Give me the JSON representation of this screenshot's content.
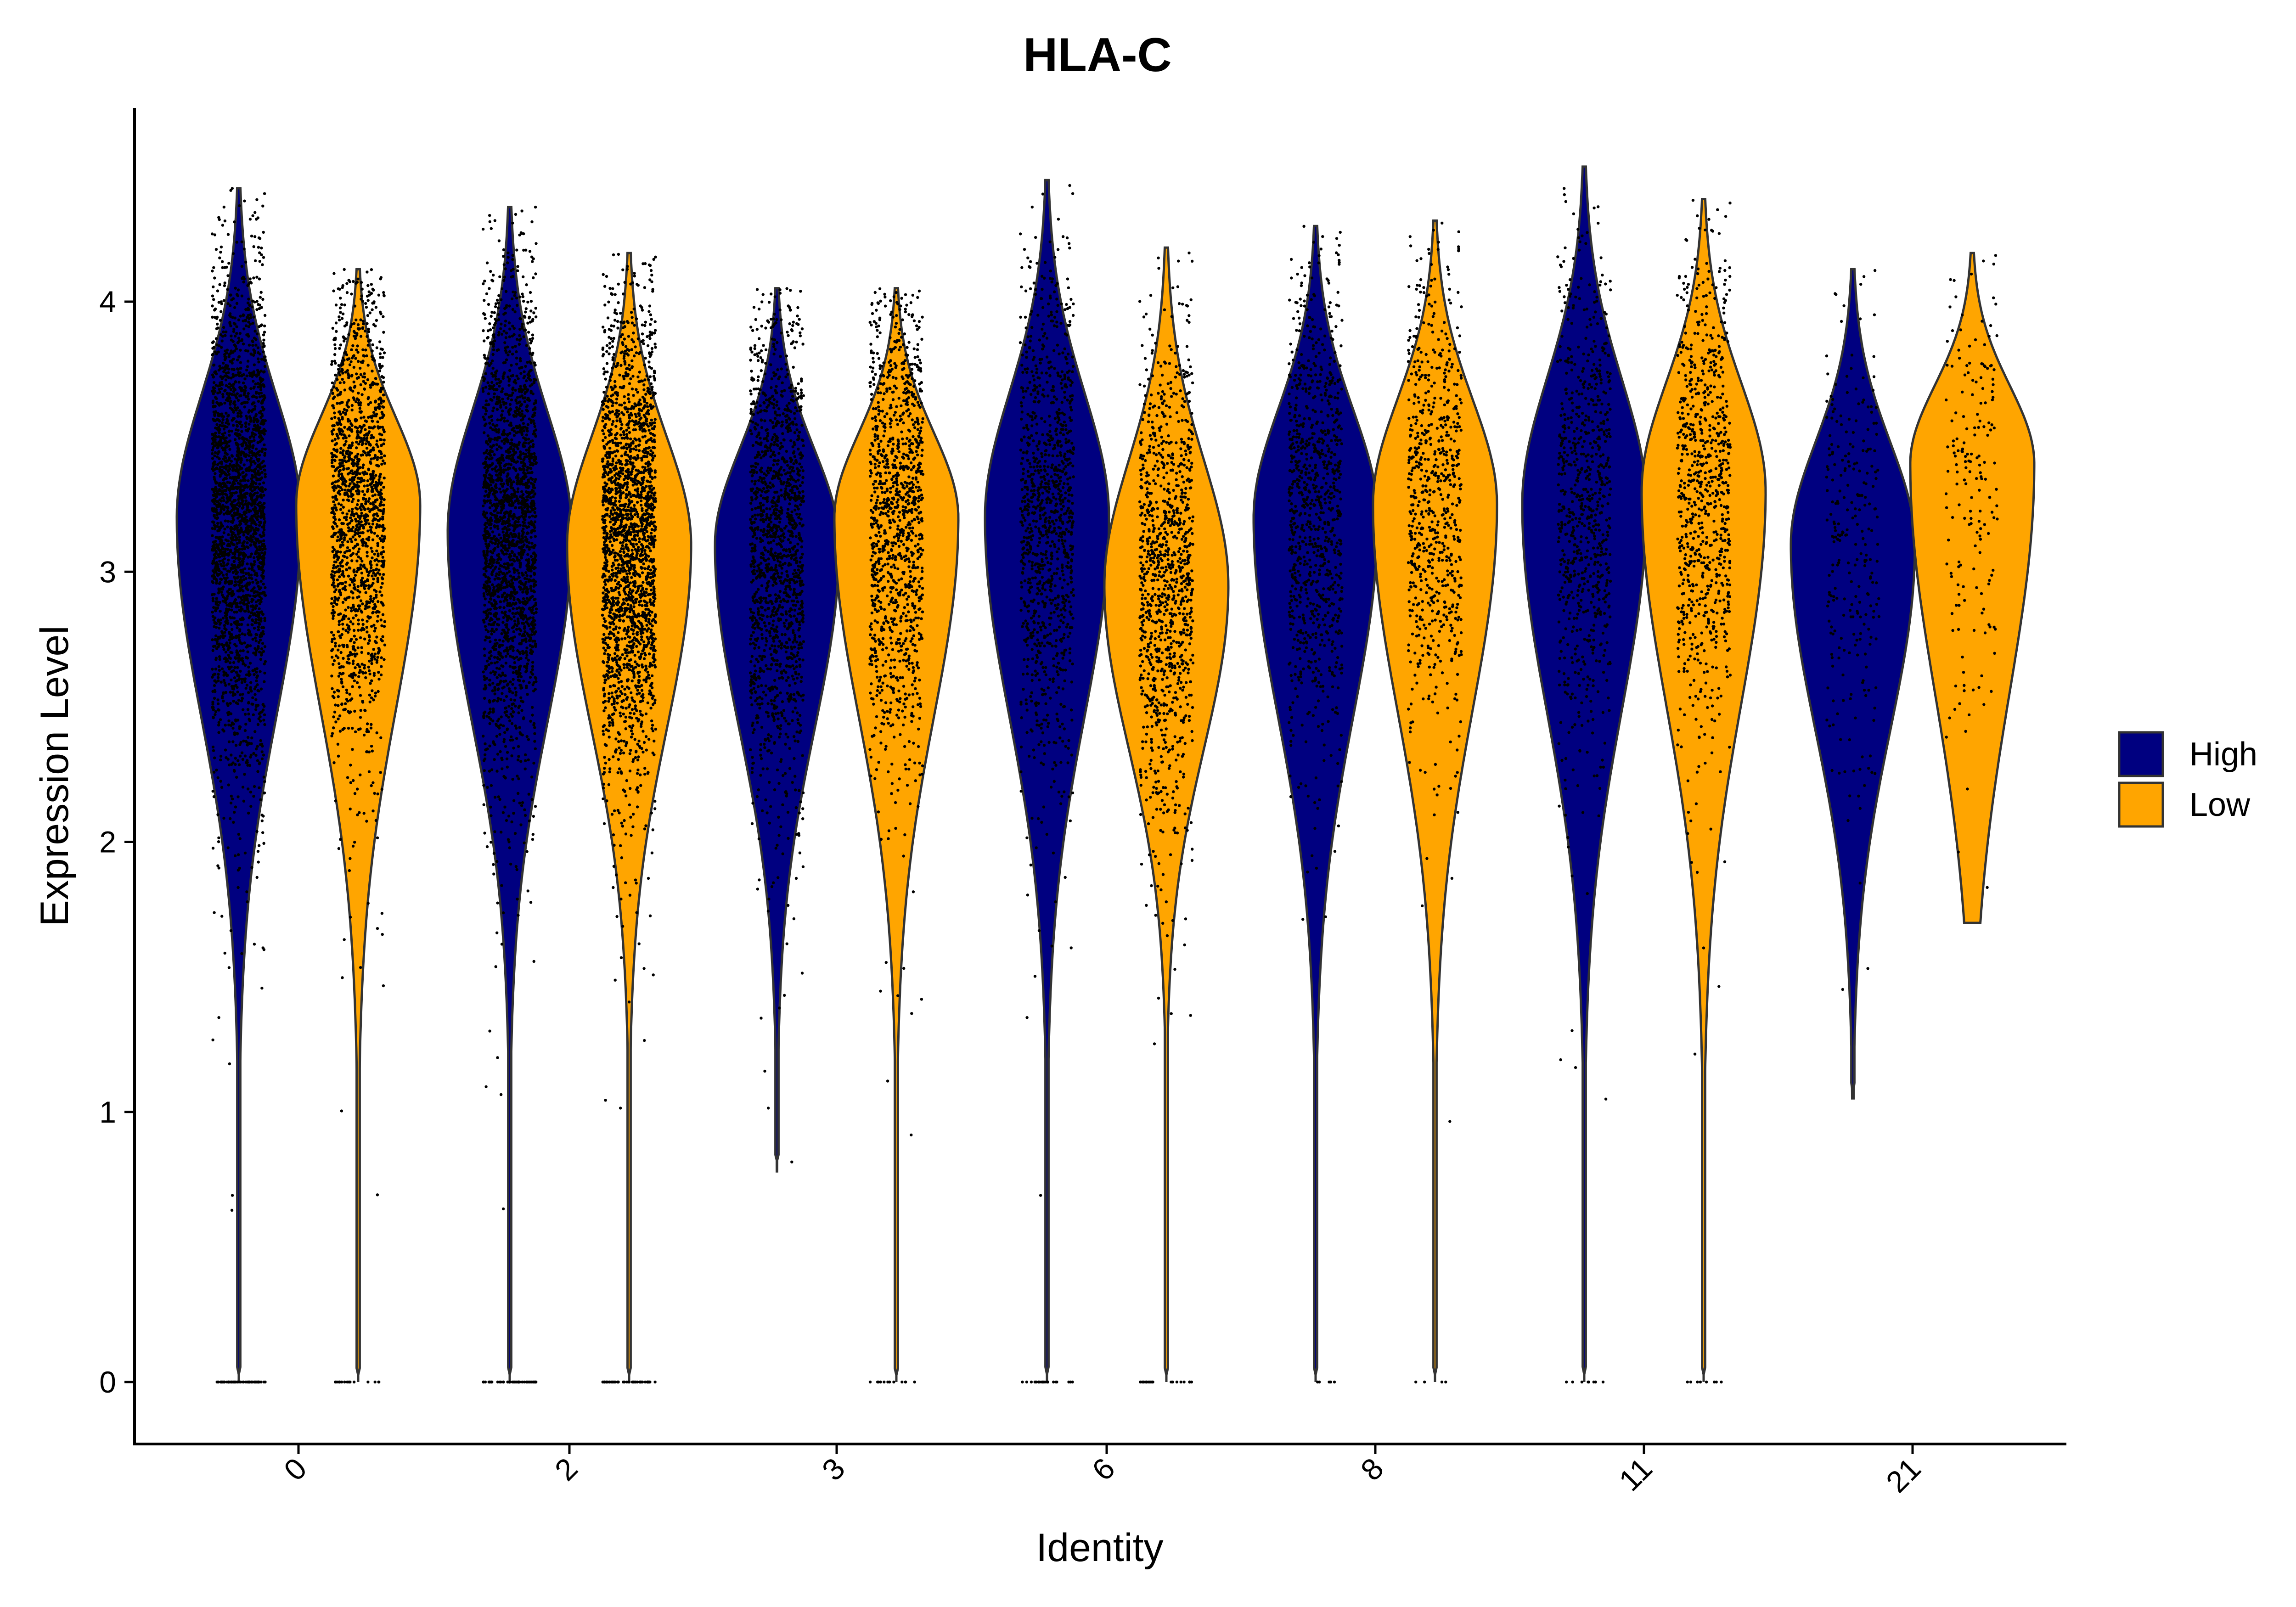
{
  "chart_data": {
    "type": "violin",
    "title": "HLA-C",
    "xlabel": "Identity",
    "ylabel": "Expression Level",
    "ylim": [
      -0.22,
      4.72
    ],
    "yticks": [
      0,
      1,
      2,
      3,
      4
    ],
    "categories": [
      "0",
      "2",
      "3",
      "6",
      "8",
      "11",
      "21"
    ],
    "x_tick_rotation_deg": -45,
    "jitter_points": true,
    "legend": {
      "position": "right",
      "entries": [
        {
          "label": "High",
          "color": "#000080"
        },
        {
          "label": "Low",
          "color": "#FFA500"
        }
      ]
    },
    "series": [
      {
        "name": "High",
        "color": "#000080",
        "violins": [
          {
            "category": "0",
            "ymin": 0,
            "ymax": 4.42,
            "density_peak": 3.2,
            "n_points": 2600,
            "zero_fraction": 0.02
          },
          {
            "category": "2",
            "ymin": 0,
            "ymax": 4.35,
            "density_peak": 3.15,
            "n_points": 2300,
            "zero_fraction": 0.02
          },
          {
            "category": "3",
            "ymin": 0.78,
            "ymax": 4.05,
            "density_peak": 3.1,
            "n_points": 1500,
            "zero_fraction": 0
          },
          {
            "category": "6",
            "ymin": 0,
            "ymax": 4.45,
            "density_peak": 3.2,
            "n_points": 1100,
            "zero_fraction": 0.02
          },
          {
            "category": "8",
            "ymin": 0,
            "ymax": 4.28,
            "density_peak": 3.2,
            "n_points": 900,
            "zero_fraction": 0.005
          },
          {
            "category": "11",
            "ymin": 0,
            "ymax": 4.5,
            "density_peak": 3.25,
            "n_points": 750,
            "zero_fraction": 0.01
          },
          {
            "category": "21",
            "ymin": 1.05,
            "ymax": 4.12,
            "density_peak": 3.1,
            "n_points": 260,
            "zero_fraction": 0
          }
        ]
      },
      {
        "name": "Low",
        "color": "#FFA500",
        "violins": [
          {
            "category": "0",
            "ymin": 0,
            "ymax": 4.12,
            "density_peak": 3.25,
            "n_points": 1600,
            "zero_fraction": 0.01
          },
          {
            "category": "2",
            "ymin": 0,
            "ymax": 4.18,
            "density_peak": 3.1,
            "n_points": 2300,
            "zero_fraction": 0.02
          },
          {
            "category": "3",
            "ymin": 0,
            "ymax": 4.05,
            "density_peak": 3.2,
            "n_points": 1200,
            "zero_fraction": 0.01
          },
          {
            "category": "6",
            "ymin": 0,
            "ymax": 4.2,
            "density_peak": 2.95,
            "n_points": 1100,
            "zero_fraction": 0.02
          },
          {
            "category": "8",
            "ymin": 0,
            "ymax": 4.3,
            "density_peak": 3.25,
            "n_points": 700,
            "zero_fraction": 0.005
          },
          {
            "category": "11",
            "ymin": 0,
            "ymax": 4.38,
            "density_peak": 3.3,
            "n_points": 800,
            "zero_fraction": 0.01
          },
          {
            "category": "21",
            "ymin": 1.7,
            "ymax": 4.18,
            "density_peak": 3.4,
            "n_points": 180,
            "zero_fraction": 0
          }
        ]
      }
    ]
  }
}
